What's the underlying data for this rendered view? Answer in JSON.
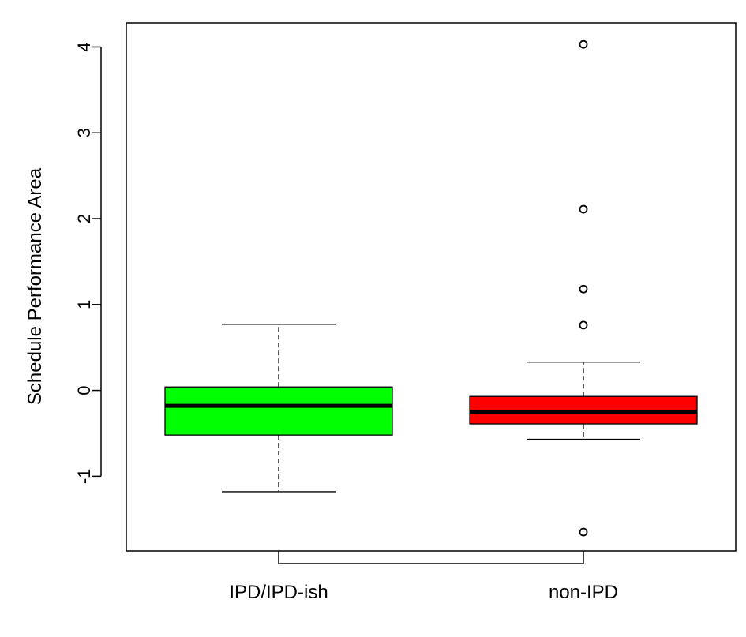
{
  "chart_data": {
    "type": "boxplot",
    "title": "",
    "xlabel": "",
    "ylabel": "Schedule Performance Area",
    "ylim": [
      -1.87,
      4.28
    ],
    "yticks": [
      -1,
      0,
      1,
      2,
      3,
      4
    ],
    "grid": false,
    "legend": "none",
    "categories": [
      "IPD/IPD-ish",
      "non-IPD"
    ],
    "boxes": [
      {
        "category": "IPD/IPD-ish",
        "color": "#00ff00",
        "whisker_low": -1.18,
        "q1": -0.52,
        "median": -0.18,
        "q3": 0.04,
        "whisker_high": 0.77,
        "outliers": []
      },
      {
        "category": "non-IPD",
        "color": "#ff0000",
        "whisker_low": -0.57,
        "q1": -0.39,
        "median": -0.25,
        "q3": -0.07,
        "whisker_high": 0.33,
        "outliers": [
          4.03,
          2.11,
          1.18,
          0.76,
          -1.65
        ]
      }
    ]
  }
}
